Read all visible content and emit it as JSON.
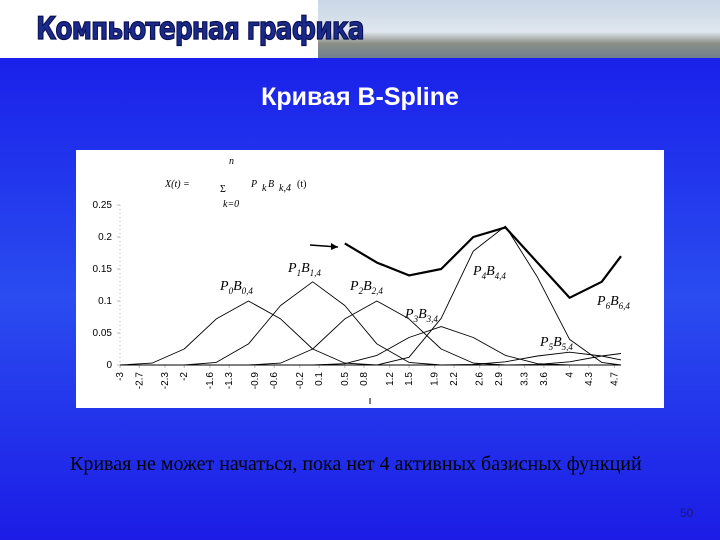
{
  "header": {
    "title": "Компьютерная графика"
  },
  "title": "Кривая B-Spline",
  "chart_data": {
    "type": "line",
    "formula": {
      "lhs": "X(t) =",
      "sum": "Σ",
      "upper": "n",
      "lower": "k=0",
      "term": "P",
      "term_sub": "k",
      "basis": "B",
      "basis_sub": "k,4",
      "arg": "(t)"
    },
    "x": [
      -3,
      -2.5,
      -2,
      -1.5,
      -1,
      -0.5,
      0,
      0.5,
      1,
      1.5,
      2,
      2.5,
      3,
      3.5,
      4,
      4.5,
      4.8
    ],
    "series": [
      {
        "label": {
          "p": "P",
          "ps": "0",
          "b": "B",
          "bs": "0,4"
        },
        "color": "#000000",
        "values": [
          0,
          0.003,
          0.025,
          0.072,
          0.1,
          0.072,
          0.025,
          0.003,
          0,
          0,
          0,
          0,
          0,
          0,
          0,
          0,
          0
        ]
      },
      {
        "label": {
          "p": "P",
          "ps": "1",
          "b": "B",
          "bs": "1,4"
        },
        "color": "#000000",
        "values": [
          0,
          0,
          0,
          0.004,
          0.033,
          0.093,
          0.13,
          0.093,
          0.033,
          0.004,
          0,
          0,
          0,
          0,
          0,
          0,
          0
        ]
      },
      {
        "label": {
          "p": "P",
          "ps": "2",
          "b": "B",
          "bs": "2,4"
        },
        "color": "#000000",
        "values": [
          0,
          0,
          0,
          0,
          0,
          0.003,
          0.025,
          0.072,
          0.1,
          0.072,
          0.025,
          0.003,
          0,
          0,
          0,
          0,
          0
        ]
      },
      {
        "label": {
          "p": "P",
          "ps": "3",
          "b": "B",
          "bs": "3,4"
        },
        "color": "#000000",
        "values": [
          0,
          0,
          0,
          0,
          0,
          0,
          0,
          0.002,
          0.015,
          0.043,
          0.06,
          0.043,
          0.015,
          0.002,
          0,
          0,
          0
        ]
      },
      {
        "label": {
          "p": "P",
          "ps": "4",
          "b": "B",
          "bs": "4,4"
        },
        "color": "#000000",
        "values": [
          0,
          0,
          0,
          0,
          0,
          0,
          0,
          0,
          0,
          0.012,
          0.073,
          0.178,
          0.217,
          0.137,
          0.04,
          0.004,
          0
        ]
      },
      {
        "label": {
          "p": "P",
          "ps": "5",
          "b": "B",
          "bs": "5,4"
        },
        "color": "#000000",
        "values": [
          0,
          0,
          0,
          0,
          0,
          0,
          0,
          0,
          0,
          0,
          0,
          0.001,
          0.005,
          0.014,
          0.02,
          0.014,
          0.008
        ]
      },
      {
        "label": {
          "p": "P",
          "ps": "6",
          "b": "B",
          "bs": "6,4"
        },
        "color": "#000000",
        "values": [
          0,
          0,
          0,
          0,
          0,
          0,
          0,
          0,
          0,
          0,
          0,
          0,
          0,
          0.001,
          0.005,
          0.014,
          0.018
        ]
      },
      {
        "color": "#000000",
        "values": [
          null,
          null,
          null,
          null,
          null,
          null,
          null,
          0.19,
          0.16,
          0.14,
          0.15,
          0.2,
          0.215,
          0.16,
          0.105,
          0.13,
          0.17
        ]
      }
    ],
    "xlim": [
      -3,
      4.8
    ],
    "xticks": [
      -3,
      -2.7,
      -2.3,
      -2,
      -1.6,
      -1.3,
      -0.9,
      -0.6,
      -0.2,
      0.1,
      0.5,
      0.8,
      1.2,
      1.5,
      1.9,
      2.2,
      2.6,
      2.9,
      3.3,
      3.6,
      4,
      4.3,
      4.7
    ],
    "ylim": [
      0,
      0.25
    ],
    "yticks": [
      0,
      0.05,
      0.1,
      0.15,
      0.2,
      0.25
    ]
  },
  "body": "Кривая не может начаться, пока нет 4 активных базисных функций",
  "page_number": "50"
}
